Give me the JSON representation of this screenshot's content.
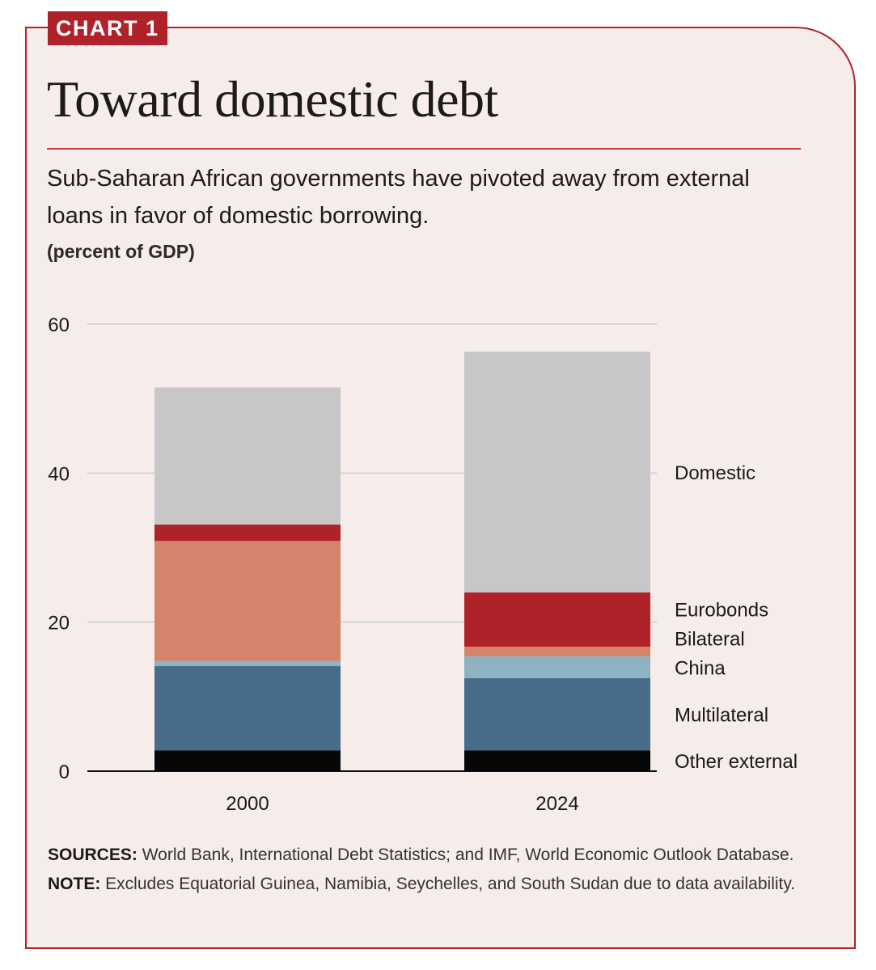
{
  "tag": "CHART 1",
  "title": "Toward domestic debt",
  "subtitle": "Sub-Saharan African governments have pivoted away from external loans in favor of domestic borrowing.",
  "units": "(percent of GDP)",
  "colors": {
    "accent": "#b0222a",
    "background": "#f6ecea",
    "gridline": "#cfd6d6"
  },
  "chart_data": {
    "type": "bar",
    "stacked": true,
    "categories": [
      "2000",
      "2024"
    ],
    "ylim": [
      0,
      60
    ],
    "yticks": [
      0,
      20,
      40,
      60
    ],
    "grid": true,
    "legend": "right (direct labels)",
    "series": [
      {
        "name": "Other external",
        "color": "#060708",
        "values": [
          2.8,
          2.8
        ]
      },
      {
        "name": "Multilateral",
        "color": "#476d8a",
        "values": [
          11.3,
          9.7
        ]
      },
      {
        "name": "China",
        "color": "#8eb2c2",
        "values": [
          0.7,
          2.9
        ]
      },
      {
        "name": "Bilateral",
        "color": "#d6836c",
        "values": [
          16.1,
          1.3
        ]
      },
      {
        "name": "Eurobonds",
        "color": "#b0222a",
        "values": [
          2.2,
          7.3
        ]
      },
      {
        "name": "Domestic",
        "color": "#c8c7c8",
        "values": [
          18.4,
          32.3
        ]
      }
    ]
  },
  "notes": {
    "sources_label": "SOURCES:",
    "sources_text": "World Bank, International Debt Statistics; and IMF, World Economic Outlook Database.",
    "note_label": "NOTE:",
    "note_text": "Excludes Equatorial Guinea, Namibia, Seychelles, and South Sudan due to data availability."
  }
}
